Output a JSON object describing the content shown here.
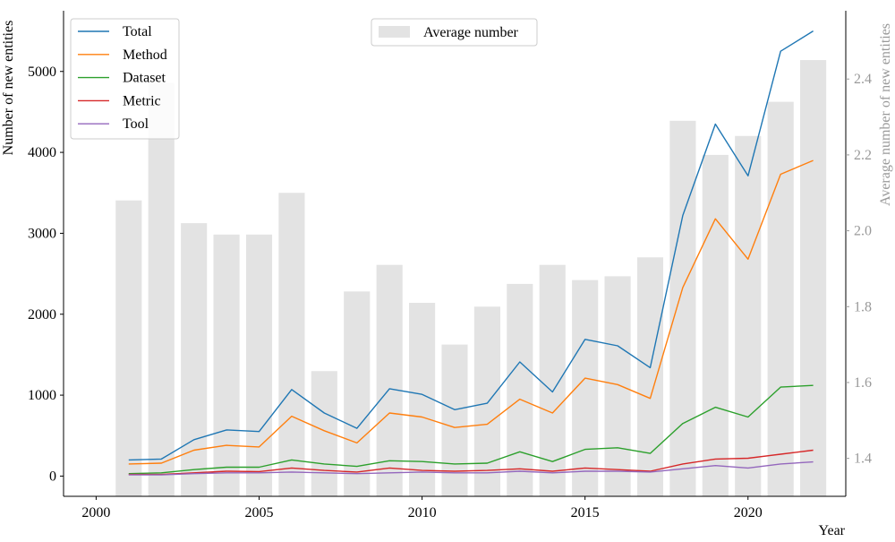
{
  "chart_data": {
    "type": "bar+line",
    "xlabel": "Year",
    "ylabel_left": "Number of new entities",
    "ylabel_right": "Average number of new entities",
    "xlim": [
      1999,
      2023
    ],
    "ylim_left": [
      -250,
      5750
    ],
    "ylim_right": [
      1.3,
      2.58
    ],
    "x_ticks": [
      2000,
      2005,
      2010,
      2015,
      2020
    ],
    "y_left_ticks": [
      0,
      1000,
      2000,
      3000,
      4000,
      5000
    ],
    "y_right_ticks": [
      1.4,
      1.6,
      1.8,
      2.0,
      2.2,
      2.4
    ],
    "years": [
      2001,
      2002,
      2003,
      2004,
      2005,
      2006,
      2007,
      2008,
      2009,
      2010,
      2011,
      2012,
      2013,
      2014,
      2015,
      2016,
      2017,
      2018,
      2019,
      2020,
      2021,
      2022
    ],
    "bar_series": {
      "name": "Average number",
      "color": "#e3e3e3",
      "values": [
        2.08,
        2.39,
        2.02,
        1.99,
        1.99,
        2.1,
        1.63,
        1.84,
        1.91,
        1.81,
        1.7,
        1.8,
        1.86,
        1.91,
        1.87,
        1.88,
        1.93,
        2.29,
        2.2,
        2.25,
        2.34,
        2.45
      ]
    },
    "line_series": [
      {
        "name": "Total",
        "color": "#1f77b4",
        "values": [
          200,
          210,
          450,
          570,
          550,
          1070,
          780,
          590,
          1080,
          1010,
          820,
          900,
          1410,
          1040,
          1690,
          1610,
          1340,
          3220,
          4350,
          3710,
          5250,
          5500
        ]
      },
      {
        "name": "Method",
        "color": "#ff7f0e",
        "values": [
          150,
          160,
          320,
          380,
          360,
          740,
          560,
          410,
          780,
          730,
          600,
          640,
          950,
          780,
          1210,
          1130,
          960,
          2330,
          3180,
          2680,
          3730,
          3900
        ]
      },
      {
        "name": "Dataset",
        "color": "#2ca02c",
        "values": [
          30,
          40,
          80,
          110,
          110,
          200,
          150,
          120,
          190,
          180,
          150,
          160,
          300,
          180,
          330,
          350,
          280,
          650,
          850,
          730,
          1100,
          1120
        ]
      },
      {
        "name": "Metric",
        "color": "#d62728",
        "values": [
          20,
          20,
          40,
          60,
          55,
          100,
          70,
          50,
          100,
          70,
          60,
          70,
          90,
          60,
          100,
          80,
          60,
          150,
          210,
          220,
          270,
          320
        ]
      },
      {
        "name": "Tool",
        "color": "#9467bd",
        "values": [
          15,
          15,
          30,
          40,
          40,
          50,
          40,
          30,
          40,
          50,
          40,
          40,
          60,
          40,
          60,
          60,
          50,
          90,
          130,
          100,
          150,
          175
        ]
      }
    ],
    "legend_lines_position": "top-left",
    "legend_bars_position": "top-center",
    "grid": false
  }
}
